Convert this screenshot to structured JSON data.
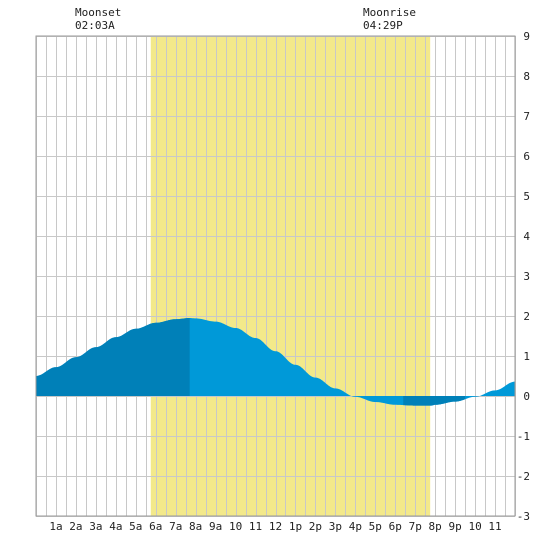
{
  "annotations": {
    "moonset_label": "Moonset",
    "moonset_time": "02:03A",
    "moonrise_label": "Moonrise",
    "moonrise_time": "04:29P"
  },
  "colors": {
    "daylight": "#f3e98a",
    "tide_light": "#0099d8",
    "tide_dark": "#0080b8",
    "grid": "#c8c8c8",
    "background": "#ffffff"
  },
  "chart_data": {
    "type": "area",
    "title": "",
    "xlabel": "",
    "ylabel": "",
    "xlim": [
      0,
      24
    ],
    "ylim": [
      -3,
      9
    ],
    "grid": true,
    "x_ticks": [
      {
        "x": 1,
        "label": "1a"
      },
      {
        "x": 2,
        "label": "2a"
      },
      {
        "x": 3,
        "label": "3a"
      },
      {
        "x": 4,
        "label": "4a"
      },
      {
        "x": 5,
        "label": "5a"
      },
      {
        "x": 6,
        "label": "6a"
      },
      {
        "x": 7,
        "label": "7a"
      },
      {
        "x": 8,
        "label": "8a"
      },
      {
        "x": 9,
        "label": "9a"
      },
      {
        "x": 10,
        "label": "10"
      },
      {
        "x": 11,
        "label": "11"
      },
      {
        "x": 12,
        "label": "12"
      },
      {
        "x": 13,
        "label": "1p"
      },
      {
        "x": 14,
        "label": "2p"
      },
      {
        "x": 15,
        "label": "3p"
      },
      {
        "x": 16,
        "label": "4p"
      },
      {
        "x": 17,
        "label": "5p"
      },
      {
        "x": 18,
        "label": "6p"
      },
      {
        "x": 19,
        "label": "7p"
      },
      {
        "x": 20,
        "label": "8p"
      },
      {
        "x": 21,
        "label": "9p"
      },
      {
        "x": 22,
        "label": "10"
      },
      {
        "x": 23,
        "label": "11"
      }
    ],
    "y_ticks": [
      -3,
      -2,
      -1,
      0,
      1,
      2,
      3,
      4,
      5,
      6,
      7,
      8,
      9
    ],
    "daylight_range": [
      5.75,
      19.75
    ],
    "dark_shade_ranges": [
      [
        0,
        7.7
      ],
      [
        18.4,
        21.5
      ]
    ],
    "moonset_hour": 2.05,
    "moonrise_hour": 16.48,
    "series": [
      {
        "x": [
          0,
          1,
          2,
          3,
          4,
          5,
          6,
          7,
          7.7,
          8,
          9,
          10,
          11,
          12,
          13,
          14,
          15,
          16,
          17,
          18,
          19,
          19.8,
          20,
          21,
          22,
          23,
          24
        ],
        "values": [
          0.5,
          0.72,
          0.97,
          1.22,
          1.47,
          1.68,
          1.83,
          1.92,
          1.95,
          1.94,
          1.86,
          1.7,
          1.45,
          1.12,
          0.78,
          0.46,
          0.19,
          -0.02,
          -0.15,
          -0.22,
          -0.24,
          -0.24,
          -0.22,
          -0.14,
          -0.02,
          0.14,
          0.36
        ]
      }
    ]
  }
}
